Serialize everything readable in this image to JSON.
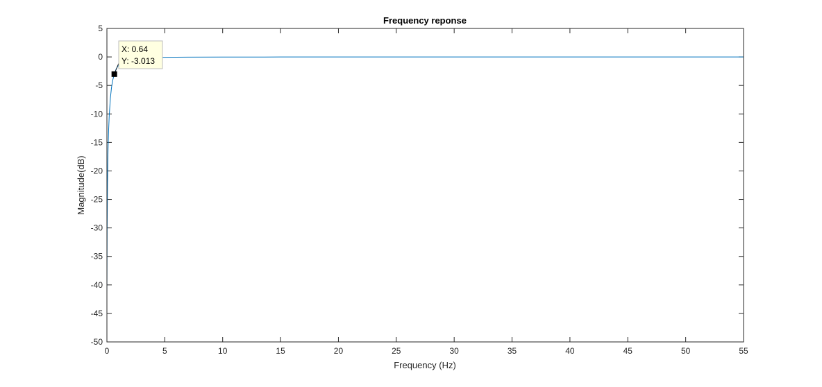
{
  "chart_data": {
    "type": "line",
    "title": "Frequency reponse",
    "xlabel": "Frequency (Hz)",
    "ylabel": "Magnitude(dB)",
    "xlim": [
      0,
      55
    ],
    "ylim": [
      -50,
      5
    ],
    "xticks": [
      0,
      5,
      10,
      15,
      20,
      25,
      30,
      35,
      40,
      45,
      50,
      55
    ],
    "yticks": [
      5,
      0,
      -5,
      -10,
      -15,
      -20,
      -25,
      -30,
      -35,
      -40,
      -45,
      -50
    ],
    "grid": false,
    "series_color": "#0072BD",
    "series": [
      {
        "x": [
          0.0,
          0.02,
          0.05,
          0.08,
          0.1,
          0.15,
          0.2,
          0.3,
          0.4,
          0.5,
          0.64,
          0.8,
          1.0,
          1.5,
          2.0,
          3.0,
          4.0,
          5.0,
          7.0,
          10.0,
          15.0,
          20.0,
          30.0,
          40.0,
          50.0,
          55.0
        ],
        "y": [
          -42.0,
          -30.1,
          -22.2,
          -18.1,
          -16.1,
          -12.7,
          -10.3,
          -7.2,
          -5.3,
          -4.1,
          -3.013,
          -2.1,
          -1.44,
          -0.72,
          -0.43,
          -0.2,
          -0.11,
          -0.07,
          -0.04,
          -0.02,
          -0.01,
          -0.005,
          -0.002,
          -0.001,
          -0.001,
          -0.001
        ]
      }
    ],
    "datatip": {
      "x": 0.64,
      "y": -3.013,
      "x_text": "X: 0.64",
      "y_text": "Y: -3.013",
      "box_color": "#FFFFE1",
      "border_color": "#BDBDBD"
    }
  }
}
